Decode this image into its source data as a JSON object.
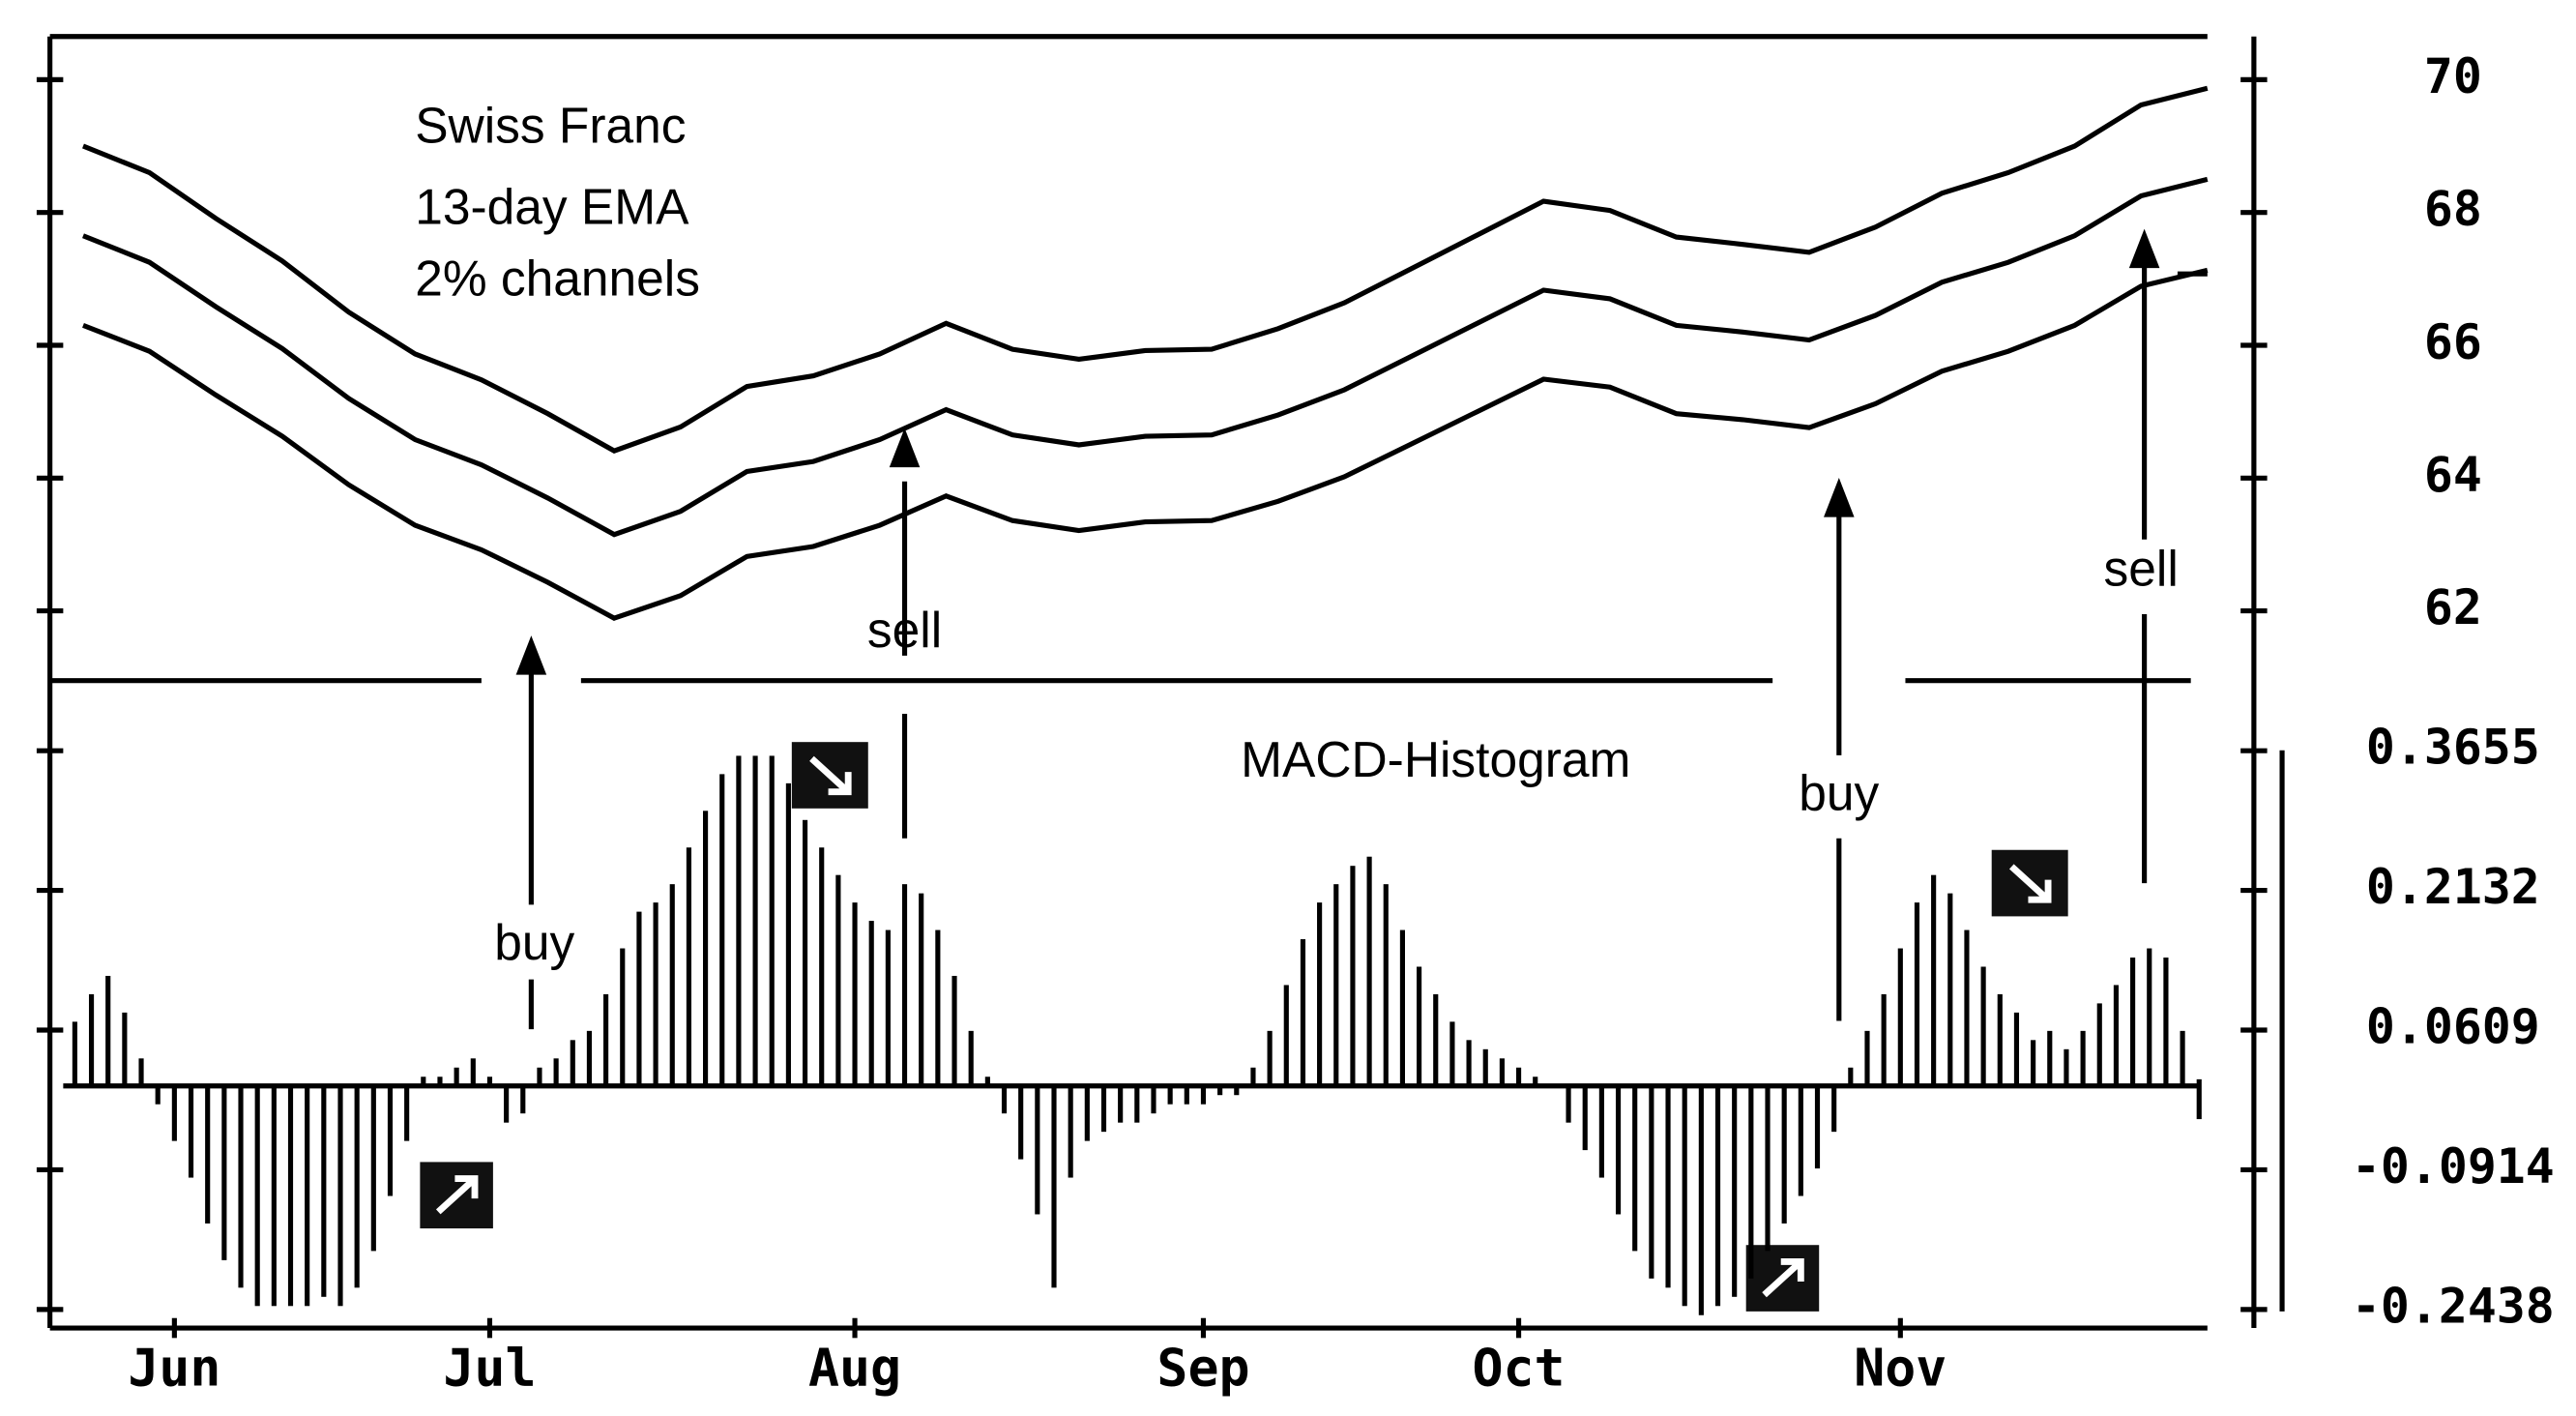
{
  "chart_data": [
    {
      "type": "line",
      "annotations": [
        "Swiss Franc",
        "13-day EMA",
        "2% channels"
      ],
      "signals": [
        "sell",
        "buy",
        "buy",
        "sell"
      ],
      "color": "#000000",
      "ylim": [
        61,
        70.65
      ],
      "yticks": [
        62,
        64,
        66,
        68,
        70
      ],
      "series": [
        {
          "color": "#000000",
          "values": [
            69.0,
            68.6,
            67.91,
            67.27,
            66.5,
            65.87,
            65.48,
            64.97,
            64.41,
            64.77,
            65.38,
            65.54,
            65.87,
            66.33,
            65.94,
            65.79,
            65.92,
            65.94,
            66.25,
            66.64,
            67.15,
            67.66,
            68.17,
            68.03,
            67.63,
            67.52,
            67.4,
            67.78,
            68.29,
            68.6,
            69.0,
            69.62,
            69.87
          ]
        },
        {
          "color": "#000000",
          "values": [
            67.65,
            67.25,
            66.58,
            65.95,
            65.2,
            64.58,
            64.2,
            63.7,
            63.15,
            63.5,
            64.1,
            64.25,
            64.58,
            65.03,
            64.65,
            64.5,
            64.63,
            64.65,
            64.95,
            65.33,
            65.83,
            66.33,
            66.83,
            66.7,
            66.3,
            66.2,
            66.08,
            66.45,
            66.95,
            67.25,
            67.65,
            68.25,
            68.5
          ]
        },
        {
          "color": "#000000",
          "values": [
            66.3,
            65.91,
            65.25,
            64.63,
            63.9,
            63.29,
            62.92,
            62.43,
            61.89,
            62.23,
            62.82,
            62.97,
            63.29,
            63.73,
            63.36,
            63.21,
            63.34,
            63.36,
            63.65,
            64.02,
            64.51,
            65.0,
            65.49,
            65.37,
            64.97,
            64.88,
            64.76,
            65.12,
            65.61,
            65.91,
            66.3,
            66.89,
            67.13
          ]
        }
      ]
    },
    {
      "type": "bar",
      "title": "MACD-Histogram",
      "color": "#000000",
      "ylim": [
        -0.264,
        0.442
      ],
      "yticks": [
        0.3655,
        0.2132,
        0.0609,
        -0.0914,
        -0.2438
      ],
      "categories": [
        null,
        null,
        null,
        null,
        null,
        null,
        "Jun",
        null,
        null,
        null,
        null,
        null,
        null,
        null,
        null,
        null,
        null,
        null,
        null,
        null,
        null,
        null,
        null,
        null,
        null,
        "Jul",
        null,
        null,
        null,
        null,
        null,
        null,
        null,
        null,
        null,
        null,
        null,
        null,
        null,
        null,
        null,
        null,
        null,
        null,
        null,
        null,
        null,
        "Aug",
        null,
        null,
        null,
        null,
        null,
        null,
        null,
        null,
        null,
        null,
        null,
        null,
        null,
        null,
        null,
        null,
        null,
        null,
        null,
        null,
        "Sep",
        null,
        null,
        null,
        null,
        null,
        null,
        null,
        null,
        null,
        null,
        null,
        null,
        null,
        null,
        null,
        null,
        null,
        null,
        "Oct",
        null,
        null,
        null,
        null,
        null,
        null,
        null,
        null,
        null,
        null,
        null,
        null,
        null,
        null,
        null,
        null,
        null,
        null,
        null,
        null,
        null,
        null,
        "Nov",
        null,
        null,
        null,
        null,
        null,
        null,
        null,
        null,
        null,
        null,
        null,
        null,
        null,
        null,
        null,
        null,
        null
      ],
      "values": [
        0.07,
        0.1,
        0.12,
        0.08,
        0.03,
        -0.02,
        -0.06,
        -0.1,
        -0.15,
        -0.19,
        -0.22,
        -0.24,
        -0.24,
        -0.24,
        -0.24,
        -0.23,
        -0.24,
        -0.22,
        -0.18,
        -0.12,
        -0.06,
        0.01,
        0.01,
        0.02,
        0.03,
        0.01,
        -0.04,
        -0.03,
        0.02,
        0.03,
        0.05,
        0.06,
        0.1,
        0.15,
        0.19,
        0.2,
        0.22,
        0.26,
        0.3,
        0.34,
        0.36,
        0.36,
        0.36,
        0.33,
        0.29,
        0.26,
        0.23,
        0.2,
        0.18,
        0.17,
        0.22,
        0.21,
        0.17,
        0.12,
        0.06,
        0.01,
        -0.03,
        -0.08,
        -0.14,
        -0.22,
        -0.1,
        -0.06,
        -0.05,
        -0.04,
        -0.04,
        -0.03,
        -0.02,
        -0.02,
        -0.02,
        -0.01,
        -0.01,
        0.02,
        0.06,
        0.11,
        0.16,
        0.2,
        0.22,
        0.24,
        0.25,
        0.22,
        0.17,
        0.13,
        0.1,
        0.07,
        0.05,
        0.04,
        0.03,
        0.02,
        0.01,
        0,
        -0.04,
        -0.07,
        -0.1,
        -0.14,
        -0.18,
        -0.21,
        -0.22,
        -0.24,
        -0.25,
        -0.24,
        -0.23,
        -0.21,
        -0.18,
        -0.15,
        -0.12,
        -0.09,
        -0.05,
        0.02,
        0.06,
        0.1,
        0.15,
        0.2,
        0.23,
        0.21,
        0.17,
        0.13,
        0.1,
        0.08,
        0.05,
        0.06,
        0.04,
        0.06,
        0.09,
        0.11,
        0.14,
        0.15,
        0.14,
        0.06
      ]
    }
  ]
}
